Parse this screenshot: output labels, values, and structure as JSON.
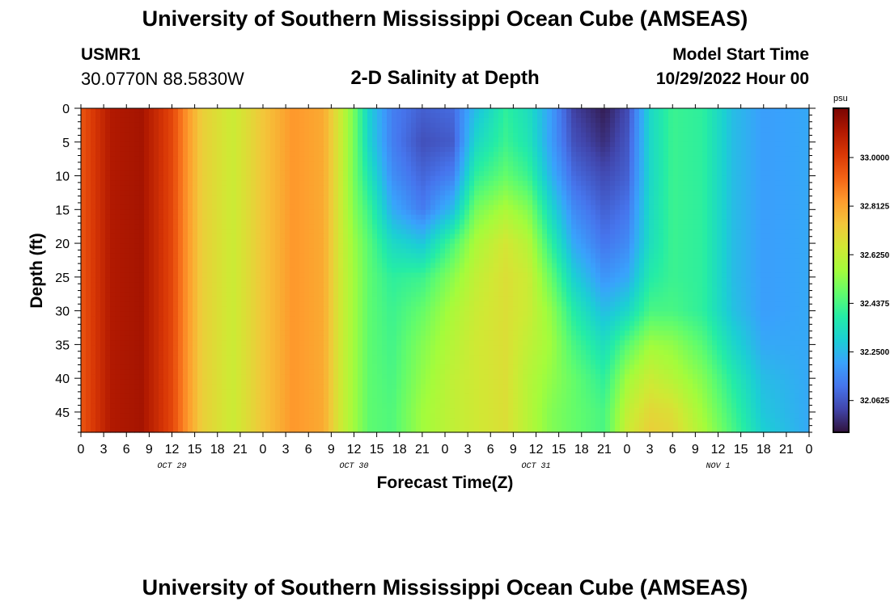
{
  "header": {
    "title": "University of Southern Mississippi Ocean Cube (AMSEAS)",
    "station": "USMR1",
    "coordinates": "30.0770N  88.5830W",
    "subtitle": "2-D Salinity at Depth",
    "model_start_label": "Model Start Time",
    "model_start_value": "10/29/2022 Hour 00"
  },
  "footer": {
    "title": "University of Southern Mississippi Ocean Cube (AMSEAS)"
  },
  "chart_data": {
    "type": "heatmap",
    "variable": "Salinity",
    "units": "psu",
    "xlabel": "Forecast Time(Z)",
    "ylabel": "Depth (ft)",
    "x_tick_labels": [
      "0",
      "3",
      "6",
      "9",
      "12",
      "15",
      "18",
      "21",
      "0",
      "3",
      "6",
      "9",
      "12",
      "15",
      "18",
      "21",
      "0",
      "3",
      "6",
      "9",
      "12",
      "15",
      "18",
      "21",
      "0",
      "3",
      "6",
      "9",
      "12",
      "15",
      "18",
      "21",
      "0"
    ],
    "date_labels": [
      {
        "label": "OCT 29",
        "hour": 12
      },
      {
        "label": "OCT 30",
        "hour": 36
      },
      {
        "label": "OCT 31",
        "hour": 60
      },
      {
        "label": "NOV 1",
        "hour": 84
      }
    ],
    "xlim": [
      0,
      96
    ],
    "ylim": [
      0,
      48
    ],
    "y_ticks": [
      0,
      5,
      10,
      15,
      20,
      25,
      30,
      35,
      40,
      45
    ],
    "colorbar": {
      "ticks": [
        "33.0000",
        "32.8125",
        "32.6250",
        "32.4375",
        "32.2500",
        "32.0625"
      ],
      "range": [
        31.94,
        33.19
      ],
      "colors": [
        "#30123b",
        "#4145ab",
        "#4675ed",
        "#39a2fc",
        "#1bcfd4",
        "#24eca6",
        "#61fc6c",
        "#a4fc3b",
        "#d1e834",
        "#f3c63a",
        "#fe9b2d",
        "#f36315",
        "#d93806",
        "#b11901",
        "#7a0402"
      ]
    },
    "salinity_by_hour_and_depth": {
      "depths_ft": [
        0,
        5,
        10,
        15,
        20,
        25,
        30,
        35,
        40,
        45,
        48
      ],
      "profiles": [
        {
          "hour": 0,
          "values": [
            32.95,
            32.95,
            32.95,
            32.95,
            32.95,
            32.95,
            32.95,
            32.95,
            32.95,
            32.95,
            32.95
          ]
        },
        {
          "hour": 4,
          "values": [
            33.1,
            33.1,
            33.1,
            33.1,
            33.1,
            33.1,
            33.1,
            33.1,
            33.1,
            33.1,
            33.1
          ]
        },
        {
          "hour": 8,
          "values": [
            33.12,
            33.12,
            33.12,
            33.12,
            33.12,
            33.12,
            33.12,
            33.12,
            33.12,
            33.12,
            33.12
          ]
        },
        {
          "hour": 12,
          "values": [
            32.98,
            32.98,
            32.98,
            32.98,
            32.98,
            32.98,
            32.98,
            32.98,
            32.98,
            32.98,
            32.98
          ]
        },
        {
          "hour": 14,
          "values": [
            32.84,
            32.84,
            32.84,
            32.84,
            32.84,
            32.84,
            32.84,
            32.84,
            32.84,
            32.84,
            32.84
          ]
        },
        {
          "hour": 16,
          "values": [
            32.72,
            32.72,
            32.72,
            32.72,
            32.72,
            32.72,
            32.72,
            32.72,
            32.72,
            32.72,
            32.72
          ]
        },
        {
          "hour": 20,
          "values": [
            32.64,
            32.64,
            32.64,
            32.64,
            32.64,
            32.64,
            32.64,
            32.64,
            32.64,
            32.64,
            32.64
          ]
        },
        {
          "hour": 24,
          "values": [
            32.74,
            32.74,
            32.74,
            32.74,
            32.74,
            32.74,
            32.74,
            32.74,
            32.74,
            32.74,
            32.74
          ]
        },
        {
          "hour": 28,
          "values": [
            32.84,
            32.84,
            32.84,
            32.84,
            32.84,
            32.84,
            32.84,
            32.84,
            32.84,
            32.84,
            32.84
          ]
        },
        {
          "hour": 32,
          "values": [
            32.8,
            32.8,
            32.8,
            32.8,
            32.8,
            32.8,
            32.8,
            32.8,
            32.8,
            32.8,
            32.8
          ]
        },
        {
          "hour": 34,
          "values": [
            32.66,
            32.66,
            32.66,
            32.66,
            32.66,
            32.66,
            32.66,
            32.66,
            32.66,
            32.66,
            32.66
          ]
        },
        {
          "hour": 36,
          "values": [
            32.5,
            32.5,
            32.5,
            32.52,
            32.55,
            32.56,
            32.56,
            32.56,
            32.56,
            32.56,
            32.56
          ]
        },
        {
          "hour": 38,
          "values": [
            32.3,
            32.31,
            32.36,
            32.42,
            32.46,
            32.47,
            32.47,
            32.47,
            32.47,
            32.47,
            32.47
          ]
        },
        {
          "hour": 41,
          "values": [
            32.14,
            32.14,
            32.17,
            32.23,
            32.33,
            32.4,
            32.42,
            32.43,
            32.44,
            32.45,
            32.45
          ]
        },
        {
          "hour": 45,
          "values": [
            32.08,
            32.05,
            32.09,
            32.13,
            32.28,
            32.42,
            32.48,
            32.52,
            32.54,
            32.56,
            32.56
          ]
        },
        {
          "hour": 49,
          "values": [
            32.1,
            32.07,
            32.14,
            32.26,
            32.44,
            32.53,
            32.58,
            32.6,
            32.62,
            32.62,
            32.62
          ]
        },
        {
          "hour": 52,
          "values": [
            32.26,
            32.32,
            32.4,
            32.5,
            32.58,
            32.62,
            32.64,
            32.65,
            32.65,
            32.65,
            32.65
          ]
        },
        {
          "hour": 56,
          "values": [
            32.4,
            32.42,
            32.48,
            32.58,
            32.66,
            32.68,
            32.68,
            32.68,
            32.68,
            32.68,
            32.68
          ]
        },
        {
          "hour": 59,
          "values": [
            32.34,
            32.36,
            32.42,
            32.52,
            32.6,
            32.64,
            32.64,
            32.62,
            32.6,
            32.6,
            32.6
          ]
        },
        {
          "hour": 62,
          "values": [
            32.2,
            32.2,
            32.24,
            32.32,
            32.4,
            32.48,
            32.54,
            32.56,
            32.54,
            32.52,
            32.52
          ]
        },
        {
          "hour": 65,
          "values": [
            32.02,
            32.05,
            32.1,
            32.16,
            32.22,
            32.3,
            32.38,
            32.44,
            32.48,
            32.48,
            32.48
          ]
        },
        {
          "hour": 69,
          "values": [
            31.96,
            31.99,
            32.04,
            32.08,
            32.12,
            32.18,
            32.26,
            32.34,
            32.4,
            32.44,
            32.44
          ]
        },
        {
          "hour": 72,
          "values": [
            32.04,
            32.06,
            32.08,
            32.12,
            32.16,
            32.22,
            32.32,
            32.46,
            32.56,
            32.62,
            32.64
          ]
        },
        {
          "hour": 75,
          "values": [
            32.32,
            32.32,
            32.32,
            32.33,
            32.34,
            32.38,
            32.44,
            32.56,
            32.64,
            32.7,
            32.72
          ]
        },
        {
          "hour": 78,
          "values": [
            32.42,
            32.42,
            32.42,
            32.42,
            32.42,
            32.42,
            32.44,
            32.54,
            32.6,
            32.68,
            32.7
          ]
        },
        {
          "hour": 82,
          "values": [
            32.4,
            32.4,
            32.4,
            32.4,
            32.4,
            32.4,
            32.4,
            32.46,
            32.52,
            32.56,
            32.58
          ]
        },
        {
          "hour": 86,
          "values": [
            32.26,
            32.26,
            32.26,
            32.26,
            32.26,
            32.26,
            32.27,
            32.32,
            32.38,
            32.42,
            32.44
          ]
        },
        {
          "hour": 90,
          "values": [
            32.2,
            32.2,
            32.2,
            32.2,
            32.2,
            32.2,
            32.2,
            32.22,
            32.26,
            32.28,
            32.3
          ]
        },
        {
          "hour": 96,
          "values": [
            32.22,
            32.22,
            32.22,
            32.22,
            32.22,
            32.22,
            32.22,
            32.22,
            32.22,
            32.22,
            32.22
          ]
        }
      ]
    }
  }
}
